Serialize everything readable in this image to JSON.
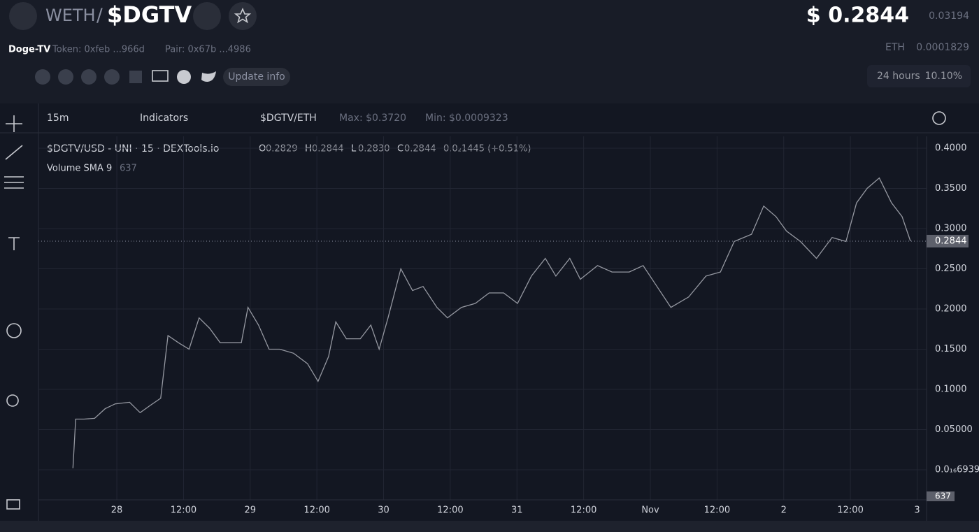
{
  "header": {
    "base": "WETH",
    "separator": "/",
    "symbol": "$DGTV",
    "price": "$ 0.2844",
    "price_eth_change": "0.03194",
    "name": "Doge-TV",
    "token": "Token: 0xfeb ...966d",
    "pair": "Pair: 0x67b ...4986",
    "eth_label": "ETH",
    "eth_price": "0.0001829",
    "update_button": "Update info",
    "period": "24 hours",
    "period_change": "10.10%"
  },
  "toolbar": {
    "interval": "15m",
    "indicators": "Indicators",
    "pair": "$DGTV/ETH",
    "max": "Max: $0.3720",
    "min": "Min: $0.0009323"
  },
  "chart_data": {
    "type": "line",
    "title": "$DGTV/USD - UNI · 15 · DEXTools.io",
    "ohlc": [
      {
        "label": "O",
        "value": 0.2829
      },
      {
        "label": "H",
        "value": 0.2844
      },
      {
        "label": "L",
        "value": 0.283
      },
      {
        "label": "C",
        "value": 0.2844
      }
    ],
    "ohlc_value_labels": [
      "0.2829",
      "0.2844",
      "0.2830",
      "0.2844"
    ],
    "change": "0.0₂1445 (+0.51%)",
    "volume_label": "Volume SMA 9",
    "volume_value": 637,
    "color": "#9598a1",
    "grid": true,
    "last_price": 0.2844,
    "x": [
      -7.9,
      -7.4,
      -5.9,
      -4.0,
      -2.1,
      -0.3,
      2.3,
      4.2,
      6.0,
      7.9,
      9.2,
      11.1,
      13.0,
      14.8,
      16.7,
      18.6,
      20.5,
      22.4,
      23.6,
      25.5,
      27.4,
      29.3,
      31.8,
      34.3,
      36.2,
      38.1,
      39.4,
      41.3,
      43.8,
      45.7,
      47.2,
      48.8,
      51.1,
      53.2,
      55.1,
      57.6,
      59.5,
      62.0,
      64.5,
      67.0,
      69.6,
      72.1,
      74.6,
      77.1,
      79.0,
      81.5,
      83.4,
      86.5,
      89.1,
      92.2,
      94.7,
      97.2,
      99.7,
      102.9,
      106.0,
      108.6,
      111.1,
      114.2,
      116.4,
      118.6,
      120.5,
      123.0,
      125.9,
      128.7,
      131.2,
      133.1,
      135.0,
      137.2,
      139.4,
      141.3,
      142.8
    ],
    "values": [
      0.002,
      0.063,
      0.063,
      0.064,
      0.076,
      0.082,
      0.084,
      0.071,
      0.08,
      0.089,
      0.167,
      0.158,
      0.15,
      0.189,
      0.176,
      0.158,
      0.158,
      0.158,
      0.202,
      0.18,
      0.15,
      0.15,
      0.145,
      0.132,
      0.11,
      0.141,
      0.184,
      0.163,
      0.163,
      0.18,
      0.15,
      0.189,
      0.25,
      0.223,
      0.228,
      0.202,
      0.189,
      0.202,
      0.207,
      0.22,
      0.22,
      0.207,
      0.241,
      0.263,
      0.241,
      0.263,
      0.237,
      0.254,
      0.246,
      0.246,
      0.254,
      0.228,
      0.202,
      0.215,
      0.241,
      0.246,
      0.284,
      0.293,
      0.328,
      0.315,
      0.297,
      0.284,
      0.263,
      0.289,
      0.284,
      0.332,
      0.35,
      0.363,
      0.332,
      0.315,
      0.2844
    ],
    "xlim": [
      -14.1,
      145.7
    ],
    "xticks": [
      {
        "value": 0,
        "label": "28"
      },
      {
        "value": 12,
        "label": "12:00"
      },
      {
        "value": 24,
        "label": "29"
      },
      {
        "value": 36,
        "label": "12:00"
      },
      {
        "value": 48,
        "label": "30"
      },
      {
        "value": 60,
        "label": "12:00"
      },
      {
        "value": 72,
        "label": "31"
      },
      {
        "value": 84,
        "label": "12:00"
      },
      {
        "value": 96,
        "label": "Nov"
      },
      {
        "value": 108,
        "label": "12:00"
      },
      {
        "value": 120,
        "label": "2"
      },
      {
        "value": 132,
        "label": "12:00"
      },
      {
        "value": 144,
        "label": "3"
      }
    ],
    "ylim": [
      -0.0374,
      0.4148
    ],
    "yticks": [
      {
        "value": 6.939e-17,
        "label": "0.0₁₆6939"
      },
      {
        "value": 0.05,
        "label": "0.05000"
      },
      {
        "value": 0.1,
        "label": "0.1000"
      },
      {
        "value": 0.15,
        "label": "0.1500"
      },
      {
        "value": 0.2,
        "label": "0.2000"
      },
      {
        "value": 0.25,
        "label": "0.2500"
      },
      {
        "value": 0.3,
        "label": "0.3000"
      },
      {
        "value": 0.35,
        "label": "0.3500"
      },
      {
        "value": 0.4,
        "label": "0.4000"
      }
    ]
  }
}
